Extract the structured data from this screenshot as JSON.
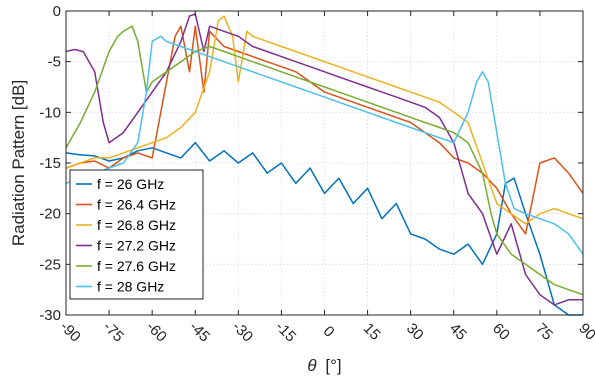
{
  "chart_data": {
    "type": "line",
    "xlabel_symbol": "θ",
    "xlabel_unit": "[°]",
    "ylabel": "Radiation Pattern [dB]",
    "xlim": [
      -90,
      90
    ],
    "ylim": [
      -30,
      0
    ],
    "grid": true,
    "legend_position": "bottom-left",
    "x_ticks": [
      -90,
      -75,
      -60,
      -45,
      -30,
      -15,
      0,
      15,
      30,
      45,
      60,
      75,
      90
    ],
    "x_tick_labels": [
      "-90",
      "-75",
      "-60",
      "-45",
      "-30",
      "-15",
      "0",
      "15",
      "30",
      "45",
      "60",
      "75",
      "90"
    ],
    "y_ticks": [
      0,
      -5,
      -10,
      -15,
      -20,
      -25,
      -30
    ],
    "y_tick_labels": [
      "0",
      "-5",
      "-10",
      "-15",
      "-20",
      "-25",
      "-30"
    ],
    "series": [
      {
        "name": "f = 26 GHz",
        "color": "#0072BD",
        "x": [
          -90,
          -85,
          -80,
          -75,
          -70,
          -65,
          -60,
          -55,
          -50,
          -45,
          -40,
          -35,
          -30,
          -25,
          -20,
          -15,
          -10,
          -5,
          0,
          5,
          10,
          15,
          20,
          25,
          30,
          35,
          40,
          45,
          50,
          55,
          60,
          63,
          66,
          70,
          75,
          80,
          85,
          90
        ],
        "y": [
          -14,
          -14.2,
          -14.3,
          -14.8,
          -14.5,
          -13.8,
          -13.5,
          -14,
          -14.5,
          -13,
          -14.8,
          -13.8,
          -15,
          -14,
          -16,
          -15,
          -17,
          -15.5,
          -18,
          -16.5,
          -19,
          -17.5,
          -20.5,
          -19,
          -22,
          -22.5,
          -23.5,
          -24,
          -23,
          -25,
          -22,
          -17,
          -16.5,
          -20,
          -24,
          -29,
          -30,
          -30
        ]
      },
      {
        "name": "f = 26.4 GHz",
        "color": "#D95319",
        "x": [
          -90,
          -85,
          -80,
          -75,
          -70,
          -65,
          -60,
          -55,
          -52,
          -50,
          -47,
          -45,
          -42,
          -40,
          -35,
          -30,
          -25,
          -20,
          -15,
          -10,
          -5,
          0,
          5,
          10,
          15,
          20,
          25,
          30,
          35,
          40,
          45,
          50,
          55,
          60,
          65,
          70,
          75,
          80,
          85,
          90
        ],
        "y": [
          -15.5,
          -15,
          -14.8,
          -15.5,
          -14.5,
          -14,
          -14.5,
          -7,
          -2.5,
          -1.5,
          -6,
          -1.5,
          -8,
          -2,
          -3.5,
          -4,
          -4.5,
          -5,
          -5.5,
          -6,
          -7,
          -8,
          -8.5,
          -9,
          -9.5,
          -10,
          -10.5,
          -11,
          -12,
          -13,
          -14.5,
          -15,
          -16,
          -17.5,
          -20,
          -22,
          -15,
          -14.5,
          -16,
          -18
        ]
      },
      {
        "name": "f = 26.8 GHz",
        "color": "#EDB120",
        "x": [
          -90,
          -85,
          -80,
          -75,
          -70,
          -65,
          -60,
          -55,
          -50,
          -45,
          -40,
          -37,
          -35,
          -32,
          -30,
          -27,
          -25,
          -20,
          -15,
          -10,
          -5,
          0,
          5,
          10,
          15,
          20,
          25,
          30,
          35,
          40,
          45,
          50,
          55,
          60,
          65,
          70,
          75,
          80,
          85,
          90
        ],
        "y": [
          -15.5,
          -15,
          -14.5,
          -14.5,
          -14,
          -13.5,
          -13,
          -12.5,
          -11.5,
          -10,
          -6,
          -1,
          -0.5,
          -2.5,
          -7,
          -2,
          -2.5,
          -3,
          -3.5,
          -4,
          -4.5,
          -5,
          -5.5,
          -6,
          -6.5,
          -7,
          -7.5,
          -8,
          -8.5,
          -9,
          -10,
          -11,
          -15,
          -19,
          -20,
          -21,
          -20,
          -19.5,
          -20,
          -20.5
        ]
      },
      {
        "name": "f = 27.2 GHz",
        "color": "#7E2F8E",
        "x": [
          -90,
          -87,
          -84,
          -80,
          -77,
          -75,
          -70,
          -65,
          -60,
          -55,
          -50,
          -47,
          -45,
          -42,
          -40,
          -35,
          -30,
          -25,
          -20,
          -15,
          -10,
          -5,
          0,
          5,
          10,
          15,
          20,
          25,
          30,
          35,
          40,
          45,
          50,
          55,
          60,
          65,
          70,
          75,
          80,
          85,
          90
        ],
        "y": [
          -4,
          -3.8,
          -4,
          -6,
          -11,
          -13,
          -12,
          -10,
          -8,
          -6,
          -3,
          -0.5,
          -0.3,
          -4,
          -1.5,
          -2,
          -2.5,
          -3.5,
          -4,
          -4.5,
          -5,
          -5.5,
          -6,
          -6.5,
          -7,
          -7.5,
          -8,
          -8.5,
          -9,
          -9.5,
          -10.5,
          -13,
          -18,
          -20,
          -24,
          -21,
          -26,
          -28,
          -29,
          -28.5,
          -28.5
        ]
      },
      {
        "name": "f = 27.6 GHz",
        "color": "#77AC30",
        "x": [
          -90,
          -85,
          -80,
          -75,
          -72,
          -70,
          -67,
          -65,
          -62,
          -60,
          -55,
          -50,
          -45,
          -40,
          -35,
          -30,
          -25,
          -20,
          -15,
          -10,
          -5,
          0,
          5,
          10,
          15,
          20,
          25,
          30,
          35,
          40,
          45,
          50,
          55,
          58,
          60,
          65,
          70,
          75,
          80,
          85,
          90
        ],
        "y": [
          -13.5,
          -11,
          -8,
          -4,
          -2.5,
          -2,
          -1.5,
          -3,
          -8,
          -7,
          -6,
          -5,
          -4,
          -3.5,
          -4,
          -4.5,
          -5,
          -5.5,
          -6,
          -6.5,
          -7,
          -7.5,
          -8,
          -8.5,
          -9,
          -9.5,
          -10,
          -10.5,
          -11,
          -11.5,
          -12,
          -13,
          -16,
          -20,
          -22,
          -24,
          -25,
          -26,
          -27,
          -27.5,
          -28
        ]
      },
      {
        "name": "f = 28 GHz",
        "color": "#4DBEEE",
        "x": [
          -90,
          -85,
          -80,
          -75,
          -70,
          -65,
          -62,
          -60,
          -57,
          -55,
          -50,
          -45,
          -40,
          -35,
          -30,
          -25,
          -20,
          -15,
          -10,
          -5,
          0,
          5,
          10,
          15,
          20,
          25,
          30,
          35,
          40,
          45,
          50,
          53,
          55,
          57,
          60,
          63,
          66,
          70,
          75,
          80,
          85,
          90
        ],
        "y": [
          -17,
          -16.5,
          -16,
          -15.5,
          -15,
          -13,
          -8,
          -3,
          -2.5,
          -3,
          -3.5,
          -4,
          -4.5,
          -5,
          -5.5,
          -6,
          -6.5,
          -7,
          -7.5,
          -8,
          -8.5,
          -9,
          -9.5,
          -10,
          -10.5,
          -11,
          -11.5,
          -12,
          -12.5,
          -13,
          -10,
          -7,
          -6,
          -7,
          -12,
          -17,
          -19.5,
          -20,
          -20.5,
          -21,
          -22,
          -24
        ]
      }
    ]
  }
}
